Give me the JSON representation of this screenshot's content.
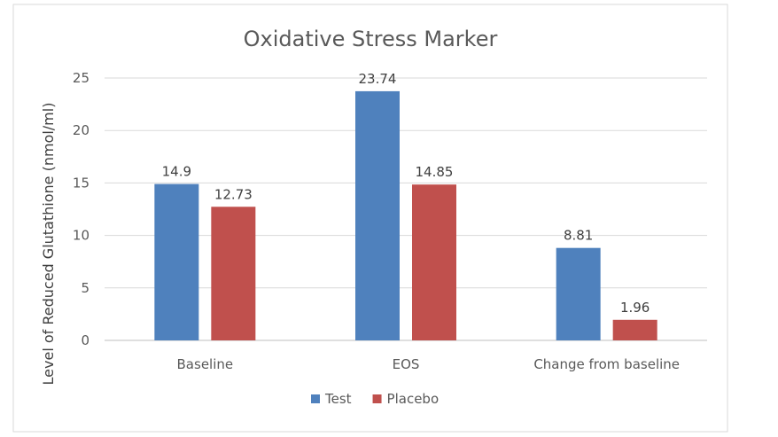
{
  "chart_data": {
    "type": "bar",
    "title": "Oxidative Stress Marker",
    "xlabel": "",
    "ylabel": "Level of Reduced Glutathione (nmol/ml)",
    "categories": [
      "Baseline",
      "EOS",
      "Change from baseline"
    ],
    "series": [
      {
        "name": "Test",
        "values": [
          14.9,
          23.74,
          8.81
        ],
        "labels": [
          "14.9",
          "23.74",
          "8.81"
        ],
        "color": "#4f81bd"
      },
      {
        "name": "Placebo",
        "values": [
          12.73,
          14.85,
          1.96
        ],
        "labels": [
          "12.73",
          "14.85",
          "1.96"
        ],
        "color": "#c0504d"
      }
    ],
    "ylim": [
      0,
      25
    ],
    "yticks": [
      0,
      5,
      10,
      15,
      20,
      25
    ],
    "grid": true,
    "legend_position": "bottom"
  }
}
